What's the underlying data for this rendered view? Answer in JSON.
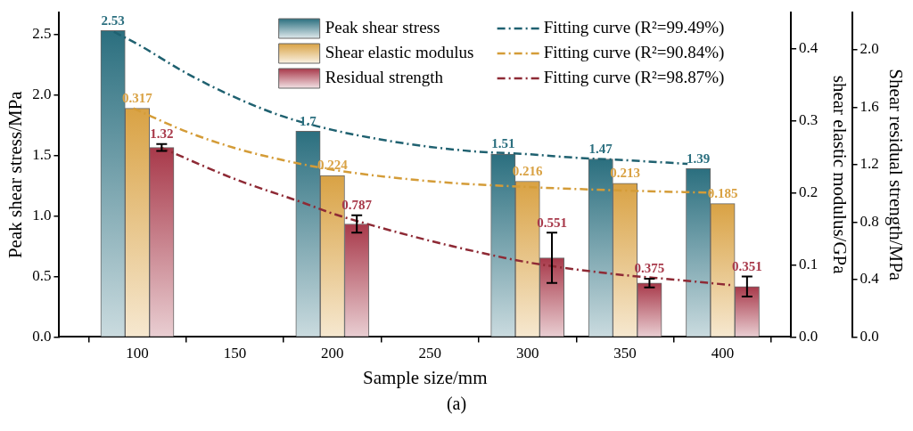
{
  "chart_data": {
    "type": "bar",
    "xlabel": "Sample size/mm",
    "ylabel": "Peak shear stress/MPa",
    "y2label": "shear elastic modulus/GPa",
    "y3label": "Shear residual strength/MPa",
    "x": [
      100,
      200,
      300,
      350,
      400
    ],
    "xlim": [
      60,
      435
    ],
    "xticks": [
      100,
      150,
      200,
      250,
      300,
      350,
      400
    ],
    "ylim": [
      0,
      2.68
    ],
    "yticks": [
      {
        "value": 0,
        "label": "0.0"
      },
      {
        "value": 0.5,
        "label": "0.5"
      },
      {
        "value": 1,
        "label": "1.0"
      },
      {
        "value": 1.5,
        "label": "1.5"
      },
      {
        "value": 2,
        "label": "2.0"
      },
      {
        "value": 2.5,
        "label": "2.5"
      }
    ],
    "y2lim": [
      0,
      0.45
    ],
    "y2ticks": [
      {
        "value": 0,
        "label": "0.0"
      },
      {
        "value": 0.1,
        "label": "0.1"
      },
      {
        "value": 0.2,
        "label": "0.2"
      },
      {
        "value": 0.3,
        "label": "0.3"
      },
      {
        "value": 0.4,
        "label": "0.4"
      }
    ],
    "y3lim": [
      0,
      2.26
    ],
    "y3ticks": [
      {
        "value": 0,
        "label": "0.0"
      },
      {
        "value": 0.4,
        "label": "0.4"
      },
      {
        "value": 0.8,
        "label": "0.8"
      },
      {
        "value": 1.2,
        "label": "1.2"
      },
      {
        "value": 1.6,
        "label": "1.6"
      },
      {
        "value": 2,
        "label": "2.0"
      }
    ],
    "series": [
      {
        "name": "Peak shear stress",
        "color": "#2b6f7f",
        "values": [
          2.53,
          1.7,
          1.51,
          1.47,
          1.39
        ],
        "value_labels": [
          "2.53",
          "1.7",
          "1.51",
          "1.47",
          "1.39"
        ]
      },
      {
        "name": "Shear elastic modulus",
        "color": "#d9a244",
        "axis": "y2",
        "values": [
          0.317,
          0.224,
          0.216,
          0.213,
          0.185
        ],
        "value_labels": [
          "0.317",
          "0.224",
          "0.216",
          "0.213",
          "0.185"
        ]
      },
      {
        "name": "Residual strength",
        "color": "#a8394a",
        "axis": "y3",
        "values": [
          1.32,
          0.787,
          0.551,
          0.375,
          0.351
        ],
        "value_labels": [
          "1.32",
          "0.787",
          "0.551",
          "0.375",
          "0.351"
        ],
        "errors": [
          0.024,
          0.06,
          0.175,
          0.03,
          0.07
        ]
      },
      {
        "name": "Fitting curve (R²=99.49%)",
        "type": "line",
        "color": "#1f6170",
        "x": [
          88,
          100,
          125,
          150,
          175,
          200,
          225,
          250,
          275,
          300,
          325,
          350,
          382
        ],
        "values": [
          2.52,
          2.42,
          2.18,
          1.98,
          1.82,
          1.71,
          1.63,
          1.57,
          1.53,
          1.51,
          1.48,
          1.46,
          1.43
        ]
      },
      {
        "name": "Fitting curve (R²=90.84%)",
        "type": "line",
        "color": "#d49c38",
        "axis": "y2",
        "x": [
          98,
          125,
          150,
          175,
          200,
          250,
          300,
          350,
          395
        ],
        "values": [
          0.317,
          0.285,
          0.262,
          0.245,
          0.232,
          0.216,
          0.208,
          0.203,
          0.2
        ]
      },
      {
        "name": "Fitting curve (R²=98.87%)",
        "type": "line",
        "color": "#8e2a35",
        "axis": "y3",
        "x": [
          112,
          150,
          186,
          200,
          225,
          250,
          275,
          300,
          325,
          350,
          375,
          405
        ],
        "values": [
          1.32,
          1.1,
          0.93,
          0.86,
          0.76,
          0.67,
          0.59,
          0.52,
          0.47,
          0.43,
          0.4,
          0.36
        ]
      }
    ],
    "legend": "top",
    "grid": false,
    "marker": "none",
    "line_style": "dashdot",
    "annotations": [
      "(a)"
    ]
  }
}
